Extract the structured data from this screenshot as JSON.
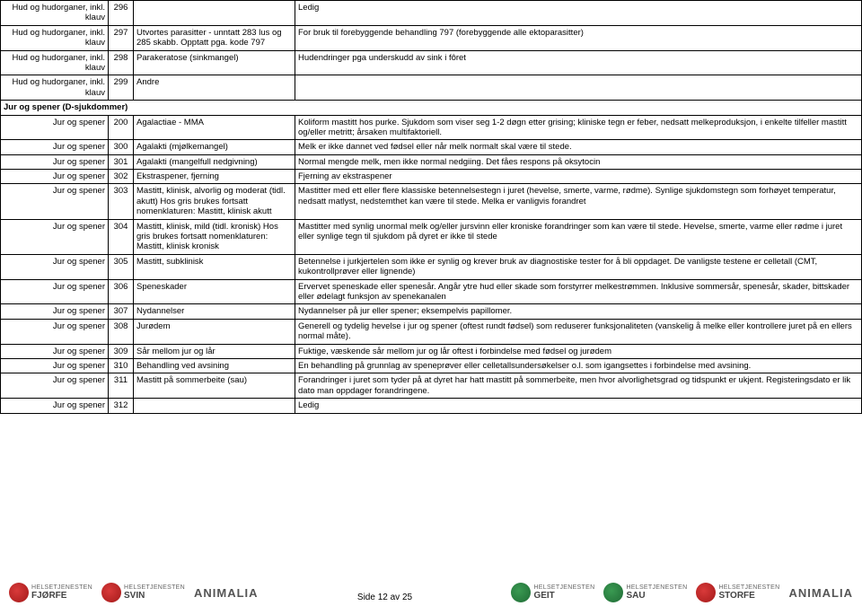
{
  "rows": [
    {
      "cat": "Hud og hudorganer, inkl. klauv",
      "code": "296",
      "name": "",
      "desc": "Ledig"
    },
    {
      "cat": "Hud og hudorganer, inkl. klauv",
      "code": "297",
      "name": "Utvortes parasitter - unntatt 283 lus og 285 skabb. Opptatt pga. kode 797",
      "desc": "For bruk til forebyggende behandling 797 (forebyggende alle ektoparasitter)"
    },
    {
      "cat": "Hud og hudorganer, inkl. klauv",
      "code": "298",
      "name": "Parakeratose (sinkmangel)",
      "desc": "Hudendringer pga underskudd av sink i fôret"
    },
    {
      "cat": "Hud og hudorganer, inkl. klauv",
      "code": "299",
      "name": "Andre",
      "desc": ""
    }
  ],
  "sectionHeader": "Jur og spener (D-sjukdommer)",
  "rows2": [
    {
      "cat": "Jur og spener",
      "code": "200",
      "name": "Agalactiae - MMA",
      "desc": "Koliform mastitt hos purke. Sjukdom som viser seg 1-2 døgn etter grising; kliniske tegn er feber, nedsatt melkeproduksjon, i enkelte tilfeller mastitt og/eller metritt; årsaken multifaktoriell."
    },
    {
      "cat": "Jur og spener",
      "code": "300",
      "name": "Agalakti (mjølkemangel)",
      "desc": "Melk er ikke dannet ved fødsel eller når melk normalt skal være til stede."
    },
    {
      "cat": "Jur og spener",
      "code": "301",
      "name": "Agalakti (mangelfull nedgivning)",
      "desc": "Normal mengde melk, men ikke normal nedgiing. Det fåes respons på oksytocin"
    },
    {
      "cat": "Jur og spener",
      "code": "302",
      "name": "Ekstraspener, fjerning",
      "desc": "Fjerning av ekstraspener"
    },
    {
      "cat": "Jur og spener",
      "code": "303",
      "name": "Mastitt, klinisk, alvorlig og moderat (tidl. akutt) Hos gris brukes fortsatt nomenklaturen: Mastitt, klinisk akutt",
      "desc": "Mastitter med ett eller flere klassiske betennelsestegn i juret (hevelse, smerte, varme, rødme). Synlige sjukdomstegn som forhøyet temperatur, nedsatt matlyst, nedstemthet kan være til stede. Melka er vanligvis forandret"
    },
    {
      "cat": "Jur og spener",
      "code": "304",
      "name": "Mastitt, klinisk, mild (tidl. kronisk) Hos gris brukes fortsatt nomenklaturen: Mastitt, klinisk kronisk",
      "desc": "Mastitter med synlig unormal melk og/eller jursvinn eller kroniske forandringer som kan være til stede. Hevelse, smerte, varme eller rødme i juret eller synlige tegn til sjukdom på dyret er ikke til stede"
    },
    {
      "cat": "Jur og spener",
      "code": "305",
      "name": "Mastitt, subklinisk",
      "desc": "Betennelse i jurkjertelen som ikke er synlig og krever bruk av diagnostiske tester for å bli oppdaget. De vanligste testene er celletall (CMT, kukontrollprøver eller lignende)"
    },
    {
      "cat": "Jur og spener",
      "code": "306",
      "name": "Speneskader",
      "desc": "Ervervet speneskade eller spenesår. Angår ytre hud eller skade som forstyrrer melkestrømmen. Inklusive sommersår, spenesår, skader, bittskader eller ødelagt funksjon av spenekanalen"
    },
    {
      "cat": "Jur og spener",
      "code": "307",
      "name": "Nydannelser",
      "desc": "Nydannelser på jur eller spener; eksempelvis papillomer."
    },
    {
      "cat": "Jur og spener",
      "code": "308",
      "name": "Jurødem",
      "desc": "Generell og tydelig hevelse i jur og spener (oftest rundt fødsel) som reduserer funksjonaliteten (vanskelig å melke eller kontrollere juret på en ellers normal måte)."
    },
    {
      "cat": "Jur og spener",
      "code": "309",
      "name": "Sår mellom jur og lår",
      "desc": "Fuktige, væskende sår mellom jur og lår oftest i forbindelse med fødsel og jurødem"
    },
    {
      "cat": "Jur og spener",
      "code": "310",
      "name": "Behandling ved avsining",
      "desc": "En behandling på grunnlag av speneprøver eller celletallsundersøkelser o.l. som igangsettes i forbindelse med avsining."
    },
    {
      "cat": "Jur og spener",
      "code": "311",
      "name": "Mastitt på sommerbeite (sau)",
      "desc": "Forandringer i juret som tyder på at dyret har hatt mastitt på sommerbeite, men hvor alvorlighetsgrad og tidspunkt er ukjent. Registeringsdato er lik dato man oppdager forandringene."
    },
    {
      "cat": "Jur og spener",
      "code": "312",
      "name": "",
      "desc": "Ledig"
    }
  ],
  "pageNum": "Side 12 av 25",
  "logos": {
    "left1": {
      "top": "HELSETJENESTEN",
      "bottom": "FJØRFE"
    },
    "left2": {
      "top": "HELSETJENESTEN",
      "bottom": "SVIN"
    },
    "right1": {
      "top": "HELSETJENESTEN",
      "bottom": "GEIT"
    },
    "right2": {
      "top": "HELSETJENESTEN",
      "bottom": "SAU"
    },
    "right3": {
      "top": "HELSETJENESTEN",
      "bottom": "STORFE"
    }
  },
  "brand": "ANIMALIA"
}
